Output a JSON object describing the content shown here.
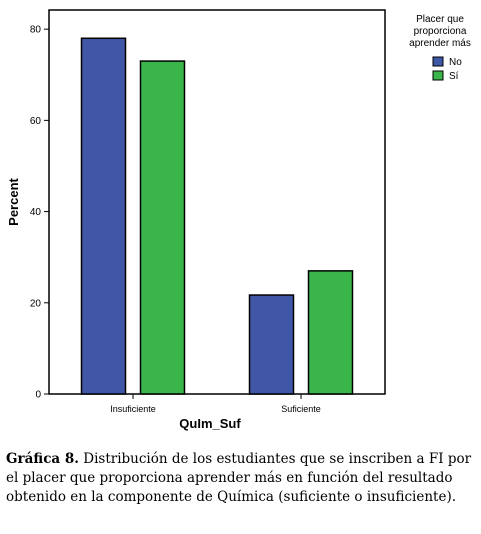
{
  "chart_data": {
    "type": "bar",
    "categories": [
      "Insuficiente",
      "Suficiente"
    ],
    "series": [
      {
        "name": "No",
        "color": "#3f57a6",
        "values": [
          78.0,
          21.7
        ]
      },
      {
        "name": "Sí",
        "color": "#3ab54a",
        "values": [
          73.0,
          27.0
        ]
      }
    ],
    "ylim": [
      0,
      84.2
    ],
    "yticks": [
      0,
      20,
      40,
      60,
      80
    ],
    "xlabel": "QuIm_Suf",
    "ylabel": "Percent",
    "legend_title": "Placer que proporciona aprender más",
    "legend_position": "right"
  },
  "caption": {
    "label": "Gráfica 8.",
    "text": "Distribución de los estudiantes que se inscriben a FI por el placer que proporciona aprender más en función del resultado obtenido en la componente de Química (suficiente o insuficiente)."
  }
}
